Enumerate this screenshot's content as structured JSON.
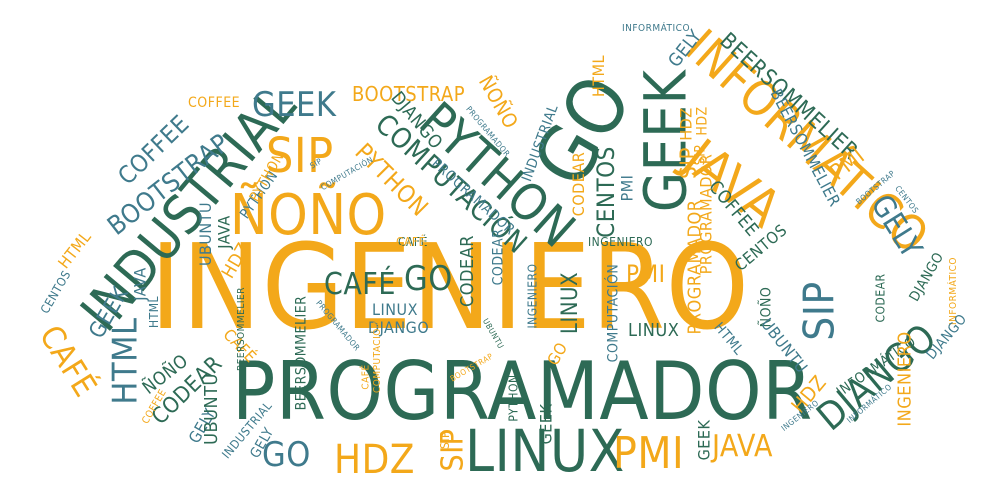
{
  "palette": {
    "orange": "#f3a81a",
    "green": "#2d6a55",
    "teal": "#3f7a8c"
  },
  "words": {
    "ingeniero_main": "INGENIERO",
    "programador_main": "PROGRAMADOR",
    "linux_main": "LINUX",
    "geek_big": "GEEK",
    "go_big": "GO",
    "industrial_big": "INDUSTRIAL",
    "python_big": "PYTHON",
    "informatico_big": "INFORMÁTICO",
    "java_big": "JAVA",
    "django_big": "DJANGO",
    "nono_big": "ÑOÑO",
    "sip_big": "SIP",
    "geek_mid": "GEEK",
    "computacion_mid": "COMPUTACIÓN",
    "html_mid": "HTML",
    "cafe_mid": "CAFÉ",
    "hdz_bottom": "HDZ",
    "pmi_bottom": "PMI",
    "go_bottom": "GO",
    "java_bottom": "JAVA",
    "sip_right": "SIP",
    "gely_right": "GELY",
    "sip_bottom": "SIP",
    "bootstrap_left": "BOOTSTRAP",
    "coffee_left": "COFFEE",
    "bootstrap_top": "BOOTSTRAP",
    "coffee_top": "COFFEE",
    "beersommelier_top": "BEERSOMMELIER",
    "gely_top": "GELY",
    "informatico_top": "INFORMÁTICO",
    "html_top": "HTML",
    "nono_top": "ÑOÑO",
    "hdz_top": "HDZ",
    "sip_top": "SIP",
    "python_small": "PYTHON",
    "django_small": "DJANGO",
    "computacion_small": "COMPUTACIÓN",
    "programador_small": "PROGRAMADOR",
    "industrial_small": "INDUSTRIAL",
    "codear_small": "CODEAR",
    "centos_small": "CENTOS",
    "pmi_small": "PMI",
    "beersommelier_small": "BEERSOMMELIER",
    "pmi_right": "PMI",
    "coffee_right": "COFFEE",
    "centos_right": "CENTOS",
    "bootstrap_right": "BOOTSTRAP",
    "centos_right2": "CENTOS",
    "informatico_right": "INFORMÁTICO",
    "django_right": "DJANGO",
    "codear_right": "CODEAR",
    "django_right2": "DJANGO",
    "nono_right": "ÑOÑO",
    "ubuntu_right": "UBUNTU",
    "html_right": "HTML",
    "informatico_right2": "INFORMÁTICO",
    "hdz_right": "HDZ",
    "ingeniero_right": "INGENIERO",
    "ingeniero_right2": "INGENIERO",
    "informatico_right3": "INFORMÁTICO",
    "geek_bottomright": "GEEK",
    "cafe_center": "CAFÉ",
    "go_center": "GO",
    "codear_center": "CODEAR",
    "linux_center": "LINUX",
    "django_center": "DJANGO",
    "linux_center2": "LINUX",
    "ingeniero_center": "INGENIERO",
    "linux_center3": "LINUX",
    "computacion_center": "COMPUTACIÓN",
    "programador_center": "PROGRAMADOR",
    "pmi_center": "PMI",
    "ingeniero_center2": "INGENIERO",
    "cafe_center2": "CAFÉ",
    "codear_center2": "CODEAR",
    "programador_center2": "PROGRAMADOR",
    "go_center2": "GO",
    "python_center": "PYTHON",
    "ubuntu_center": "UBUNTU",
    "bootstrap_center": "BOOTSTRAP",
    "html_left": "HTML",
    "java_left": "JAVA",
    "centos_left": "CENTOS",
    "geek_left": "GEEK",
    "cafe_left": "CAFÉ",
    "html_left2": "HTML",
    "nono_left": "ÑOÑO",
    "codear_left": "CODEAR",
    "ubuntu_left": "UBUNTU",
    "gely_left": "GELY",
    "industrial_left": "INDUSTRIAL",
    "coffee_left2": "COFFEE",
    "beersommelier_left": "BEERSOMMELIER",
    "python_left": "PYTHON",
    "cafe_left2": "CAFÉ",
    "ubuntu_left2": "UBUNTU",
    "java_left2": "JAVA",
    "hdz_left": "HDZ",
    "beersommelier_left2": "BEERSOMMELIER",
    "programador_left": "PROGRAMADOR",
    "cafe_top": "CAFÉ",
    "geek_bottom": "GEEK",
    "hdz_small": "HDZ",
    "sip_small": "SIP",
    "python_small2": "PYTHON",
    "sip_small2": "SIP",
    "computacion_small2": "COMPUTACIÓN",
    "programador_small2": "PROGRAMADOR",
    "gely_small": "GELY",
    "sip_right2": "SIP"
  }
}
